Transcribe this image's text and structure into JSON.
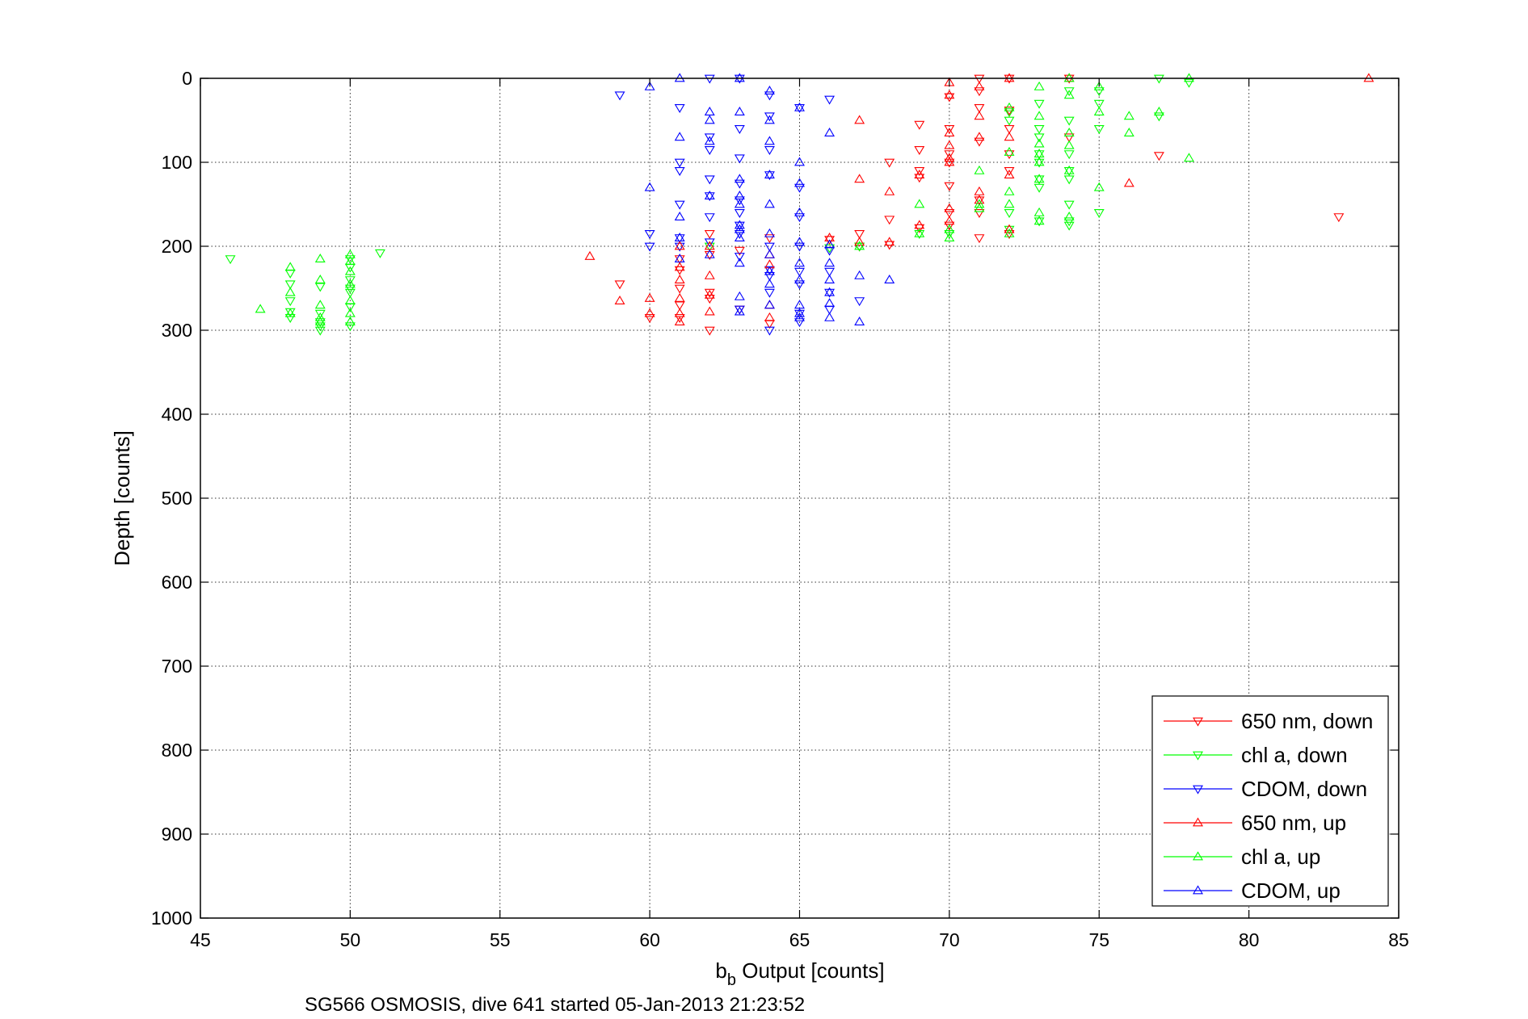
{
  "chart_data": {
    "type": "scatter",
    "xlabel": "b",
    "xlabel_subscript": "b",
    "xlabel_rest": " Output [counts]",
    "ylabel": "Depth [counts]",
    "caption": "SG566 OSMOSIS, dive 641 started 05-Jan-2013 21:23:52",
    "xlim": [
      45,
      85
    ],
    "ylim": [
      0,
      1000
    ],
    "y_reversed": true,
    "grid": "dotted",
    "legend_position": "bottom-right",
    "x_ticks": [
      "45",
      "50",
      "55",
      "60",
      "65",
      "70",
      "75",
      "80",
      "85"
    ],
    "y_ticks": [
      "0",
      "100",
      "200",
      "300",
      "400",
      "500",
      "600",
      "700",
      "800",
      "900",
      "1000"
    ],
    "series": [
      {
        "name": "650 nm, down",
        "color": "#ff0000",
        "marker": "triangle-down",
        "points": [
          [
            74,
            0
          ],
          [
            72,
            0
          ],
          [
            71,
            15
          ],
          [
            70,
            22
          ],
          [
            71,
            35
          ],
          [
            72,
            38
          ],
          [
            72,
            60
          ],
          [
            70,
            60
          ],
          [
            69,
            55
          ],
          [
            74,
            70
          ],
          [
            72,
            90
          ],
          [
            71,
            75
          ],
          [
            70,
            90
          ],
          [
            69,
            85
          ],
          [
            70,
            100
          ],
          [
            68,
            100
          ],
          [
            77,
            92
          ],
          [
            69,
            110
          ],
          [
            72,
            110
          ],
          [
            70,
            128
          ],
          [
            69,
            118
          ],
          [
            71,
            145
          ],
          [
            70,
            160
          ],
          [
            71,
            160
          ],
          [
            68,
            168
          ],
          [
            70,
            175
          ],
          [
            69,
            178
          ],
          [
            72,
            185
          ],
          [
            71,
            190
          ],
          [
            67,
            185
          ],
          [
            64,
            190
          ],
          [
            66,
            192
          ],
          [
            62,
            185
          ],
          [
            63,
            205
          ],
          [
            62,
            210
          ],
          [
            61,
            215
          ],
          [
            67,
            200
          ],
          [
            68,
            198
          ],
          [
            61,
            228
          ],
          [
            62,
            255
          ],
          [
            59,
            245
          ],
          [
            61,
            250
          ],
          [
            60,
            285
          ],
          [
            61,
            285
          ],
          [
            62,
            300
          ],
          [
            64,
            292
          ],
          [
            61,
            270
          ],
          [
            63,
            275
          ],
          [
            62,
            262
          ],
          [
            83,
            165
          ],
          [
            71,
            0
          ]
        ]
      },
      {
        "name": "chl a, down",
        "color": "#00ff00",
        "marker": "triangle-down",
        "points": [
          [
            77,
            0
          ],
          [
            78,
            5
          ],
          [
            75,
            15
          ],
          [
            75,
            30
          ],
          [
            74,
            15
          ],
          [
            73,
            30
          ],
          [
            72,
            40
          ],
          [
            72,
            50
          ],
          [
            74,
            50
          ],
          [
            73,
            60
          ],
          [
            75,
            60
          ],
          [
            73,
            70
          ],
          [
            77,
            45
          ],
          [
            74,
            90
          ],
          [
            73,
            90
          ],
          [
            73,
            120
          ],
          [
            74,
            110
          ],
          [
            73,
            100
          ],
          [
            74,
            120
          ],
          [
            73,
            130
          ],
          [
            74,
            150
          ],
          [
            75,
            160
          ],
          [
            72,
            160
          ],
          [
            73,
            170
          ],
          [
            74,
            170
          ],
          [
            74,
            175
          ],
          [
            70,
            185
          ],
          [
            69,
            185
          ],
          [
            72,
            180
          ],
          [
            51,
            208
          ],
          [
            50,
            215
          ],
          [
            46,
            215
          ],
          [
            50,
            225
          ],
          [
            48,
            232
          ],
          [
            50,
            240
          ],
          [
            48,
            245
          ],
          [
            49,
            248
          ],
          [
            50,
            250
          ],
          [
            50,
            255
          ],
          [
            48,
            265
          ],
          [
            50,
            272
          ],
          [
            48,
            278
          ],
          [
            49,
            280
          ],
          [
            49,
            290
          ],
          [
            48,
            285
          ],
          [
            49,
            295
          ],
          [
            49,
            300
          ],
          [
            50,
            295
          ],
          [
            66,
            202
          ],
          [
            67,
            200
          ],
          [
            62,
            200
          ]
        ]
      },
      {
        "name": "CDOM, down",
        "color": "#0000ff",
        "marker": "triangle-down",
        "points": [
          [
            59,
            20
          ],
          [
            61,
            35
          ],
          [
            63,
            0
          ],
          [
            62,
            0
          ],
          [
            64,
            20
          ],
          [
            65,
            35
          ],
          [
            64,
            45
          ],
          [
            63,
            60
          ],
          [
            62,
            70
          ],
          [
            62,
            85
          ],
          [
            64,
            85
          ],
          [
            63,
            95
          ],
          [
            61,
            100
          ],
          [
            61,
            110
          ],
          [
            62,
            120
          ],
          [
            64,
            115
          ],
          [
            63,
            125
          ],
          [
            65,
            130
          ],
          [
            62,
            140
          ],
          [
            63,
            145
          ],
          [
            63,
            160
          ],
          [
            61,
            150
          ],
          [
            62,
            165
          ],
          [
            65,
            165
          ],
          [
            61,
            190
          ],
          [
            62,
            195
          ],
          [
            63,
            175
          ],
          [
            63,
            185
          ],
          [
            60,
            185
          ],
          [
            60,
            200
          ],
          [
            64,
            200
          ],
          [
            66,
            205
          ],
          [
            65,
            200
          ],
          [
            63,
            212
          ],
          [
            64,
            228
          ],
          [
            65,
            230
          ],
          [
            66,
            230
          ],
          [
            64,
            255
          ],
          [
            65,
            245
          ],
          [
            64,
            235
          ],
          [
            66,
            255
          ],
          [
            67,
            265
          ],
          [
            63,
            275
          ],
          [
            66,
            275
          ],
          [
            65,
            290
          ],
          [
            64,
            300
          ],
          [
            65,
            280
          ],
          [
            61,
            200
          ],
          [
            66,
            25
          ]
        ]
      },
      {
        "name": "650 nm, up",
        "color": "#ff0000",
        "marker": "triangle-up",
        "points": [
          [
            84,
            0
          ],
          [
            74,
            0
          ],
          [
            70,
            5
          ],
          [
            72,
            0
          ],
          [
            71,
            10
          ],
          [
            70,
            20
          ],
          [
            71,
            45
          ],
          [
            70,
            65
          ],
          [
            67,
            50
          ],
          [
            71,
            70
          ],
          [
            72,
            70
          ],
          [
            70,
            80
          ],
          [
            70,
            95
          ],
          [
            70,
            100
          ],
          [
            67,
            120
          ],
          [
            69,
            115
          ],
          [
            72,
            115
          ],
          [
            76,
            125
          ],
          [
            68,
            135
          ],
          [
            71,
            135
          ],
          [
            71,
            145
          ],
          [
            70,
            155
          ],
          [
            70,
            170
          ],
          [
            69,
            175
          ],
          [
            72,
            180
          ],
          [
            68,
            195
          ],
          [
            67,
            195
          ],
          [
            66,
            190
          ],
          [
            64,
            210
          ],
          [
            62,
            200
          ],
          [
            61,
            200
          ],
          [
            58,
            212
          ],
          [
            64,
            222
          ],
          [
            61,
            225
          ],
          [
            62,
            235
          ],
          [
            61,
            240
          ],
          [
            60,
            262
          ],
          [
            59,
            265
          ],
          [
            61,
            262
          ],
          [
            62,
            258
          ],
          [
            64,
            270
          ],
          [
            61,
            280
          ],
          [
            62,
            278
          ],
          [
            61,
            290
          ],
          [
            64,
            285
          ],
          [
            60,
            280
          ]
        ]
      },
      {
        "name": "chl a, up",
        "color": "#00ff00",
        "marker": "triangle-up",
        "points": [
          [
            78,
            0
          ],
          [
            74,
            0
          ],
          [
            75,
            10
          ],
          [
            73,
            10
          ],
          [
            74,
            20
          ],
          [
            72,
            35
          ],
          [
            73,
            45
          ],
          [
            76,
            45
          ],
          [
            77,
            40
          ],
          [
            75,
            40
          ],
          [
            74,
            65
          ],
          [
            73,
            78
          ],
          [
            76,
            65
          ],
          [
            73,
            90
          ],
          [
            74,
            80
          ],
          [
            72,
            88
          ],
          [
            78,
            95
          ],
          [
            73,
            100
          ],
          [
            74,
            110
          ],
          [
            71,
            110
          ],
          [
            75,
            130
          ],
          [
            73,
            120
          ],
          [
            72,
            135
          ],
          [
            71,
            150
          ],
          [
            72,
            150
          ],
          [
            69,
            150
          ],
          [
            73,
            160
          ],
          [
            71,
            155
          ],
          [
            74,
            165
          ],
          [
            73,
            170
          ],
          [
            70,
            180
          ],
          [
            72,
            185
          ],
          [
            69,
            185
          ],
          [
            70,
            190
          ],
          [
            67,
            200
          ],
          [
            50,
            210
          ],
          [
            49,
            215
          ],
          [
            50,
            218
          ],
          [
            48,
            225
          ],
          [
            50,
            230
          ],
          [
            49,
            240
          ],
          [
            50,
            245
          ],
          [
            48,
            255
          ],
          [
            50,
            265
          ],
          [
            49,
            270
          ],
          [
            50,
            280
          ],
          [
            47,
            275
          ],
          [
            48,
            280
          ],
          [
            49,
            285
          ],
          [
            50,
            290
          ],
          [
            49,
            290
          ]
        ]
      },
      {
        "name": "CDOM, up",
        "color": "#0000ff",
        "marker": "triangle-up",
        "points": [
          [
            60,
            10
          ],
          [
            61,
            0
          ],
          [
            63,
            0
          ],
          [
            62,
            40
          ],
          [
            62,
            50
          ],
          [
            63,
            40
          ],
          [
            64,
            50
          ],
          [
            64,
            15
          ],
          [
            65,
            35
          ],
          [
            66,
            65
          ],
          [
            61,
            70
          ],
          [
            62,
            75
          ],
          [
            64,
            75
          ],
          [
            63,
            120
          ],
          [
            64,
            115
          ],
          [
            65,
            100
          ],
          [
            65,
            125
          ],
          [
            60,
            130
          ],
          [
            62,
            140
          ],
          [
            63,
            140
          ],
          [
            63,
            150
          ],
          [
            64,
            150
          ],
          [
            65,
            160
          ],
          [
            61,
            165
          ],
          [
            63,
            175
          ],
          [
            63,
            180
          ],
          [
            64,
            185
          ],
          [
            61,
            190
          ],
          [
            63,
            190
          ],
          [
            65,
            195
          ],
          [
            66,
            198
          ],
          [
            62,
            210
          ],
          [
            64,
            210
          ],
          [
            65,
            220
          ],
          [
            66,
            220
          ],
          [
            63,
            220
          ],
          [
            64,
            230
          ],
          [
            65,
            240
          ],
          [
            66,
            240
          ],
          [
            67,
            235
          ],
          [
            68,
            240
          ],
          [
            64,
            245
          ],
          [
            66,
            255
          ],
          [
            63,
            260
          ],
          [
            65,
            270
          ],
          [
            66,
            268
          ],
          [
            65,
            280
          ],
          [
            64,
            270
          ],
          [
            65,
            285
          ],
          [
            66,
            285
          ],
          [
            67,
            290
          ],
          [
            63,
            278
          ],
          [
            61,
            215
          ]
        ]
      }
    ]
  }
}
